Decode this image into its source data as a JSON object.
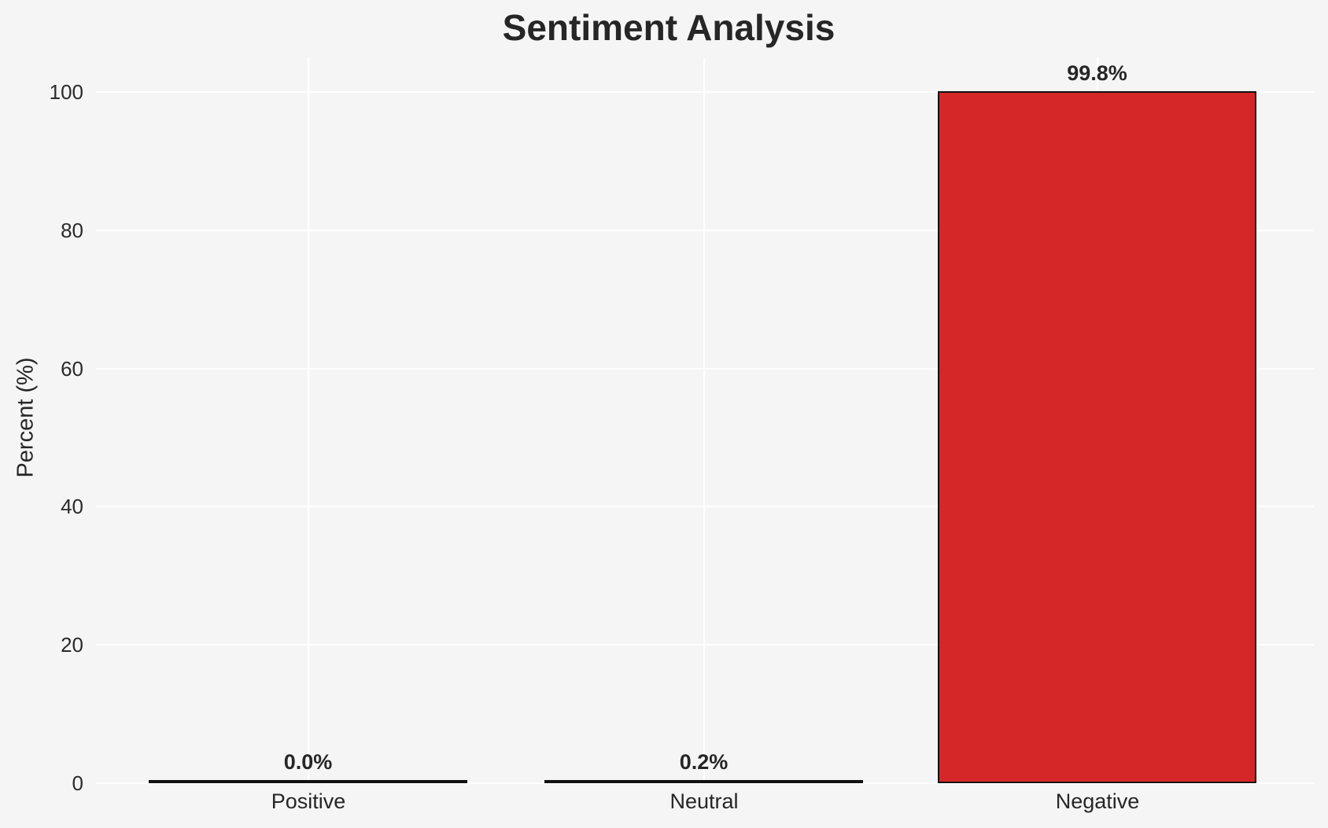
{
  "chart_data": {
    "type": "bar",
    "title": "Sentiment Analysis",
    "xlabel": "",
    "ylabel": "Percent (%)",
    "categories": [
      "Positive",
      "Neutral",
      "Negative"
    ],
    "values": [
      0.0,
      0.2,
      99.8
    ],
    "value_labels": [
      "0.0%",
      "0.2%",
      "99.8%"
    ],
    "yticks": [
      "0",
      "20",
      "40",
      "60",
      "80",
      "100"
    ],
    "ylim": [
      0,
      105
    ],
    "grid": true,
    "legend": false,
    "bar_color": "#d62728",
    "bar_edge_color": "#111111",
    "background_color": "#f5f5f5",
    "grid_color": "#ffffff",
    "text_color": "#262626"
  }
}
